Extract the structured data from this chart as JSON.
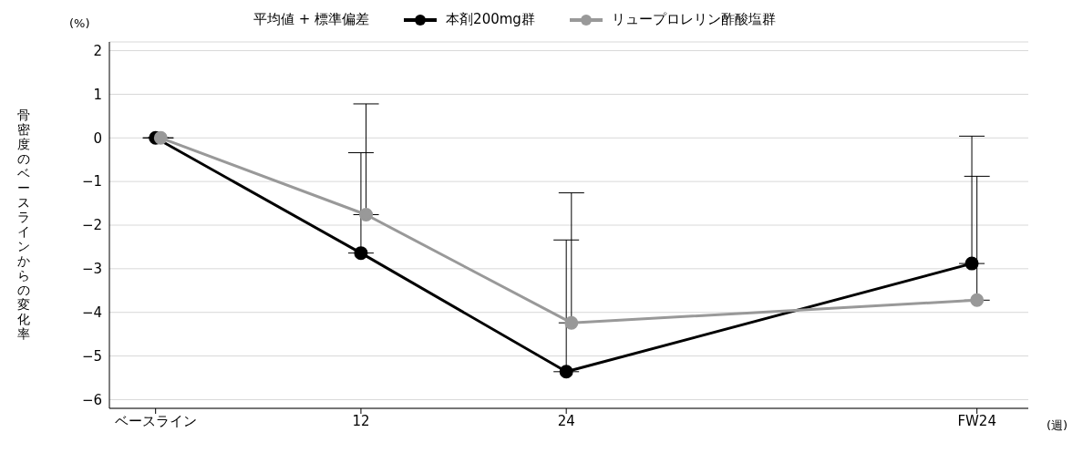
{
  "chart_data": {
    "type": "line",
    "ylabel": "骨密度のベースラインからの変化率",
    "xlabel": "(週)",
    "legend_title": "平均値 + 標準偏差",
    "annotations": [
      "(%)"
    ],
    "series": [
      {
        "name": "本剤200mg群",
        "color": "#000000",
        "x": [
          0,
          12,
          24,
          47.7
        ],
        "values": [
          0,
          -2.64,
          -5.36,
          -2.88
        ],
        "errors": [
          null,
          [
            -2.64,
            -0.34
          ],
          [
            -5.36,
            -2.34
          ],
          [
            -2.88,
            0.04
          ]
        ]
      },
      {
        "name": "リュープロレリン酢酸塩群",
        "color": "#999999",
        "x": [
          0.3,
          12.3,
          24.3,
          48
        ],
        "values": [
          0,
          -1.76,
          -4.24,
          -3.72
        ],
        "errors": [
          null,
          [
            -1.76,
            0.78
          ],
          [
            -4.24,
            -1.26
          ],
          [
            -3.72,
            -0.88
          ]
        ]
      }
    ],
    "xlim": [
      -2.7,
      51
    ],
    "xticks": [
      {
        "value": 0,
        "label": "ベースライン"
      },
      12,
      24,
      {
        "value": 48,
        "label": "FW24"
      }
    ],
    "ylim": [
      -6.2,
      2.2
    ],
    "yticks": [
      -6,
      -5,
      -4,
      -3,
      -2,
      -1,
      0,
      1,
      2
    ],
    "grid": "y",
    "legend": "top",
    "marker": "circle",
    "line_style": "solid"
  }
}
